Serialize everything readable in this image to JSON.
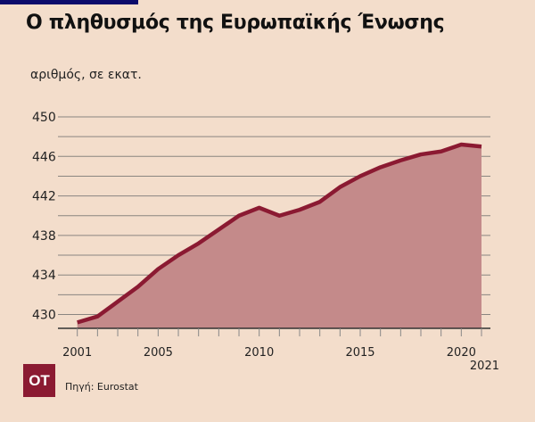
{
  "title": "Ο πληθυσμός της Ευρωπαϊκής Ένωσης",
  "logo_text": "OT",
  "source": "Πηγή: Eurostat",
  "colors": {
    "background": "#f3ddcb",
    "line": "#8b1a32",
    "fill": "#c48a8a",
    "grid": "#8a8580",
    "accent_bar": "#0b0b6b"
  },
  "chart_data": {
    "type": "area",
    "title": "Ο πληθυσμός της Ευρωπαϊκής Ένωσης",
    "ylabel": "αριθμός, σε εκατ.",
    "xlabel": "",
    "x": [
      2001,
      2002,
      2003,
      2004,
      2005,
      2006,
      2007,
      2008,
      2009,
      2010,
      2011,
      2012,
      2013,
      2014,
      2015,
      2016,
      2017,
      2018,
      2019,
      2020,
      2021
    ],
    "values": [
      429.2,
      429.8,
      431.3,
      432.8,
      434.6,
      436.0,
      437.2,
      438.6,
      440.0,
      440.8,
      440.0,
      440.6,
      441.4,
      442.9,
      444.0,
      444.9,
      445.6,
      446.2,
      446.5,
      447.2,
      447.0
    ],
    "ylim": [
      428.6,
      450
    ],
    "y_ticks": [
      "430",
      "434",
      "438",
      "442",
      "446",
      "450"
    ],
    "x_tick_labels": [
      "2001",
      "2005",
      "2010",
      "2015",
      "2020",
      "2021"
    ],
    "grid": true,
    "grid_step": 2
  }
}
